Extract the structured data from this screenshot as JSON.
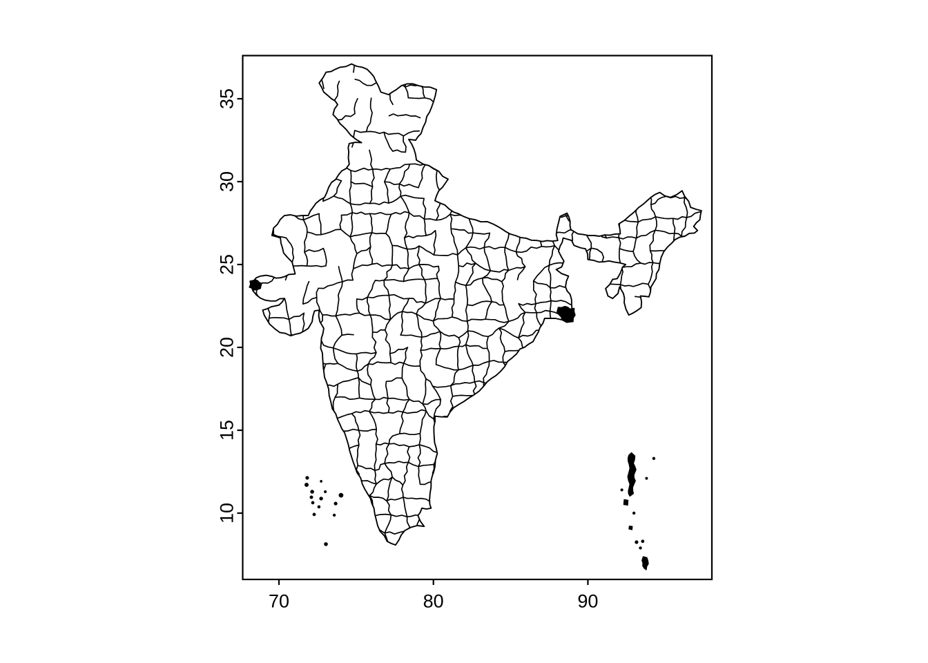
{
  "figure": {
    "description": "Base-R style outline map of India showing district boundaries",
    "background": "#ffffff",
    "ink": "#000000"
  },
  "axes": {
    "x": {
      "labels": [
        "70",
        "80",
        "90"
      ],
      "values": [
        70,
        80,
        90
      ]
    },
    "y": {
      "labels": [
        "10",
        "15",
        "20",
        "25",
        "30",
        "35"
      ],
      "values": [
        10,
        15,
        20,
        25,
        30,
        35
      ]
    }
  },
  "map": {
    "region": "India",
    "mainland": [
      [
        68.2,
        23.72
      ],
      [
        68.35,
        24.0
      ],
      [
        68.8,
        24.3
      ],
      [
        69.55,
        24.28
      ],
      [
        70.1,
        24.2
      ],
      [
        70.65,
        24.4
      ],
      [
        71.05,
        24.43
      ],
      [
        70.85,
        25.15
      ],
      [
        70.3,
        25.7
      ],
      [
        70.1,
        26.6
      ],
      [
        69.55,
        26.75
      ],
      [
        69.65,
        27.2
      ],
      [
        70.35,
        27.95
      ],
      [
        71.9,
        27.96
      ],
      [
        72.4,
        28.7
      ],
      [
        72.95,
        29.05
      ],
      [
        73.4,
        29.95
      ],
      [
        73.85,
        30.4
      ],
      [
        74.55,
        31.05
      ],
      [
        74.52,
        31.8
      ],
      [
        74.55,
        32.3
      ],
      [
        75.35,
        32.35
      ],
      [
        74.65,
        32.8
      ],
      [
        74.35,
        33.15
      ],
      [
        73.95,
        33.5
      ],
      [
        73.5,
        34.05
      ],
      [
        73.8,
        34.65
      ],
      [
        73.4,
        35.0
      ],
      [
        72.9,
        35.4
      ],
      [
        72.6,
        35.95
      ],
      [
        73.05,
        36.6
      ],
      [
        73.95,
        36.9
      ],
      [
        74.7,
        37.1
      ],
      [
        75.4,
        36.9
      ],
      [
        75.95,
        36.55
      ],
      [
        76.25,
        36.1
      ],
      [
        76.6,
        35.4
      ],
      [
        77.1,
        35.25
      ],
      [
        77.6,
        35.55
      ],
      [
        78.3,
        35.9
      ],
      [
        79.0,
        35.8
      ],
      [
        79.8,
        35.7
      ],
      [
        80.2,
        35.55
      ],
      [
        80.0,
        34.8
      ],
      [
        79.5,
        33.6
      ],
      [
        79.2,
        32.9
      ],
      [
        78.85,
        32.5
      ],
      [
        78.4,
        32.55
      ],
      [
        78.75,
        31.95
      ],
      [
        78.9,
        31.3
      ],
      [
        79.35,
        31.05
      ],
      [
        80.0,
        30.8
      ],
      [
        80.95,
        30.15
      ],
      [
        80.35,
        29.45
      ],
      [
        80.1,
        28.85
      ],
      [
        81.95,
        27.9
      ],
      [
        83.85,
        27.45
      ],
      [
        85.3,
        26.75
      ],
      [
        86.7,
        26.45
      ],
      [
        88.05,
        26.45
      ],
      [
        88.0,
        27.15
      ],
      [
        88.2,
        27.9
      ],
      [
        88.65,
        28.1
      ],
      [
        88.85,
        27.6
      ],
      [
        88.9,
        27.1
      ],
      [
        89.35,
        26.85
      ],
      [
        90.4,
        26.75
      ],
      [
        92.1,
        26.85
      ],
      [
        92.0,
        27.45
      ],
      [
        92.65,
        27.9
      ],
      [
        93.6,
        28.65
      ],
      [
        94.65,
        29.35
      ],
      [
        95.35,
        29.05
      ],
      [
        96.1,
        29.45
      ],
      [
        96.65,
        28.45
      ],
      [
        97.35,
        28.25
      ],
      [
        97.25,
        27.7
      ],
      [
        96.85,
        27.3
      ],
      [
        97.1,
        27.05
      ],
      [
        96.9,
        26.9
      ],
      [
        95.95,
        26.65
      ],
      [
        95.15,
        26.05
      ],
      [
        94.75,
        25.45
      ],
      [
        94.6,
        24.7
      ],
      [
        94.25,
        23.9
      ],
      [
        93.95,
        23.05
      ],
      [
        93.4,
        23.1
      ],
      [
        93.45,
        22.4
      ],
      [
        93.15,
        22.2
      ],
      [
        92.65,
        21.95
      ],
      [
        92.35,
        22.7
      ],
      [
        92.3,
        23.25
      ],
      [
        92.05,
        23.65
      ],
      [
        91.95,
        23.25
      ],
      [
        91.6,
        22.95
      ],
      [
        91.3,
        23.1
      ],
      [
        91.15,
        23.55
      ],
      [
        91.6,
        24.1
      ],
      [
        91.9,
        24.15
      ],
      [
        92.25,
        24.85
      ],
      [
        92.45,
        25.0
      ],
      [
        91.7,
        25.15
      ],
      [
        90.7,
        25.15
      ],
      [
        90.0,
        25.3
      ],
      [
        89.85,
        25.95
      ],
      [
        89.55,
        26.0
      ],
      [
        89.1,
        26.15
      ],
      [
        88.95,
        26.45
      ],
      [
        88.4,
        26.6
      ],
      [
        88.2,
        26.1
      ],
      [
        88.1,
        25.8
      ],
      [
        88.45,
        25.2
      ],
      [
        88.3,
        24.85
      ],
      [
        87.95,
        24.7
      ],
      [
        88.3,
        24.45
      ],
      [
        88.75,
        24.3
      ],
      [
        88.55,
        23.65
      ],
      [
        88.85,
        23.2
      ],
      [
        88.95,
        22.55
      ],
      [
        89.05,
        21.8
      ],
      [
        88.4,
        21.65
      ],
      [
        87.9,
        21.75
      ],
      [
        87.2,
        21.75
      ],
      [
        86.9,
        21.2
      ],
      [
        86.45,
        20.35
      ],
      [
        85.6,
        19.9
      ],
      [
        84.8,
        19.15
      ],
      [
        84.05,
        18.3
      ],
      [
        83.25,
        17.65
      ],
      [
        82.3,
        16.95
      ],
      [
        81.3,
        16.35
      ],
      [
        80.9,
        15.8
      ],
      [
        80.1,
        15.85
      ],
      [
        80.05,
        14.6
      ],
      [
        80.25,
        13.6
      ],
      [
        80.1,
        12.8
      ],
      [
        79.85,
        11.95
      ],
      [
        79.75,
        10.8
      ],
      [
        79.85,
        10.3
      ],
      [
        79.25,
        10.3
      ],
      [
        79.0,
        9.85
      ],
      [
        79.4,
        9.2
      ],
      [
        78.95,
        9.25
      ],
      [
        78.15,
        8.95
      ],
      [
        77.55,
        8.08
      ],
      [
        77.0,
        8.3
      ],
      [
        76.55,
        8.9
      ],
      [
        76.3,
        9.6
      ],
      [
        76.15,
        10.3
      ],
      [
        75.75,
        11.15
      ],
      [
        75.4,
        11.75
      ],
      [
        75.05,
        12.45
      ],
      [
        74.8,
        13.1
      ],
      [
        74.5,
        14.1
      ],
      [
        74.25,
        14.85
      ],
      [
        73.95,
        15.35
      ],
      [
        73.8,
        15.65
      ],
      [
        73.45,
        16.3
      ],
      [
        73.25,
        17.1
      ],
      [
        72.95,
        18.2
      ],
      [
        72.85,
        19.05
      ],
      [
        72.7,
        19.95
      ],
      [
        72.75,
        20.55
      ],
      [
        72.9,
        21.15
      ],
      [
        72.65,
        21.55
      ],
      [
        72.6,
        22.25
      ],
      [
        72.3,
        22.2
      ],
      [
        72.15,
        21.55
      ],
      [
        71.9,
        21.15
      ],
      [
        71.35,
        20.85
      ],
      [
        70.75,
        20.7
      ],
      [
        70.05,
        20.9
      ],
      [
        69.4,
        21.4
      ],
      [
        68.95,
        22.25
      ],
      [
        69.5,
        22.45
      ],
      [
        70.0,
        22.55
      ],
      [
        70.35,
        22.95
      ],
      [
        69.8,
        22.8
      ],
      [
        69.1,
        22.85
      ],
      [
        68.55,
        23.15
      ]
    ],
    "island_shapes": [
      [
        [
          92.82,
          13.65
        ],
        [
          93.05,
          13.45
        ],
        [
          92.95,
          13.0
        ],
        [
          93.12,
          12.62
        ],
        [
          92.98,
          12.3
        ],
        [
          93.08,
          11.95
        ],
        [
          92.9,
          11.55
        ],
        [
          92.95,
          11.18
        ],
        [
          92.72,
          11.02
        ],
        [
          92.62,
          11.35
        ],
        [
          92.72,
          11.75
        ],
        [
          92.58,
          12.2
        ],
        [
          92.72,
          12.7
        ],
        [
          92.6,
          13.15
        ],
        [
          92.65,
          13.5
        ]
      ],
      [
        [
          92.35,
          10.82
        ],
        [
          92.6,
          10.78
        ],
        [
          92.58,
          10.48
        ],
        [
          92.32,
          10.52
        ]
      ],
      [
        [
          92.68,
          9.22
        ],
        [
          92.88,
          9.2
        ],
        [
          92.86,
          9.0
        ],
        [
          92.66,
          9.04
        ]
      ],
      [
        [
          93.58,
          7.38
        ],
        [
          93.82,
          7.32
        ],
        [
          93.92,
          6.95
        ],
        [
          93.78,
          6.58
        ],
        [
          93.55,
          6.82
        ],
        [
          93.5,
          7.15
        ]
      ]
    ],
    "island_dots": [
      [
        94.27,
        13.3,
        1.6
      ],
      [
        93.8,
        12.1,
        1.4
      ],
      [
        92.2,
        11.4,
        1.5
      ],
      [
        92.98,
        10.0,
        1.6
      ],
      [
        93.15,
        8.25,
        2.0
      ],
      [
        93.55,
        8.3,
        1.8
      ],
      [
        93.4,
        7.9,
        1.6
      ],
      [
        71.83,
        12.13,
        2.0
      ],
      [
        71.79,
        11.71,
        2.4
      ],
      [
        72.15,
        11.29,
        2.2
      ],
      [
        72.73,
        11.92,
        1.3
      ],
      [
        73.0,
        11.29,
        1.5
      ],
      [
        72.1,
        10.96,
        1.9
      ],
      [
        72.73,
        10.88,
        2.1
      ],
      [
        72.19,
        10.63,
        1.8
      ],
      [
        72.59,
        10.38,
        1.7
      ],
      [
        74.02,
        11.08,
        2.8
      ],
      [
        73.67,
        10.58,
        2.0
      ],
      [
        72.28,
        9.92,
        1.8
      ],
      [
        73.58,
        9.88,
        1.6
      ],
      [
        73.04,
        8.13,
        2.2
      ]
    ],
    "filled_areas": [
      [
        [
          68.12,
          24.0
        ],
        [
          68.6,
          24.05
        ],
        [
          68.88,
          23.85
        ],
        [
          68.8,
          23.55
        ],
        [
          68.38,
          23.45
        ],
        [
          68.08,
          23.62
        ]
      ],
      [
        [
          88.08,
          22.42
        ],
        [
          88.5,
          22.48
        ],
        [
          88.85,
          22.32
        ],
        [
          89.12,
          22.36
        ],
        [
          89.18,
          21.95
        ],
        [
          89.05,
          21.55
        ],
        [
          88.62,
          21.5
        ],
        [
          88.32,
          21.66
        ],
        [
          88.14,
          21.95
        ],
        [
          88.0,
          22.15
        ]
      ]
    ]
  }
}
